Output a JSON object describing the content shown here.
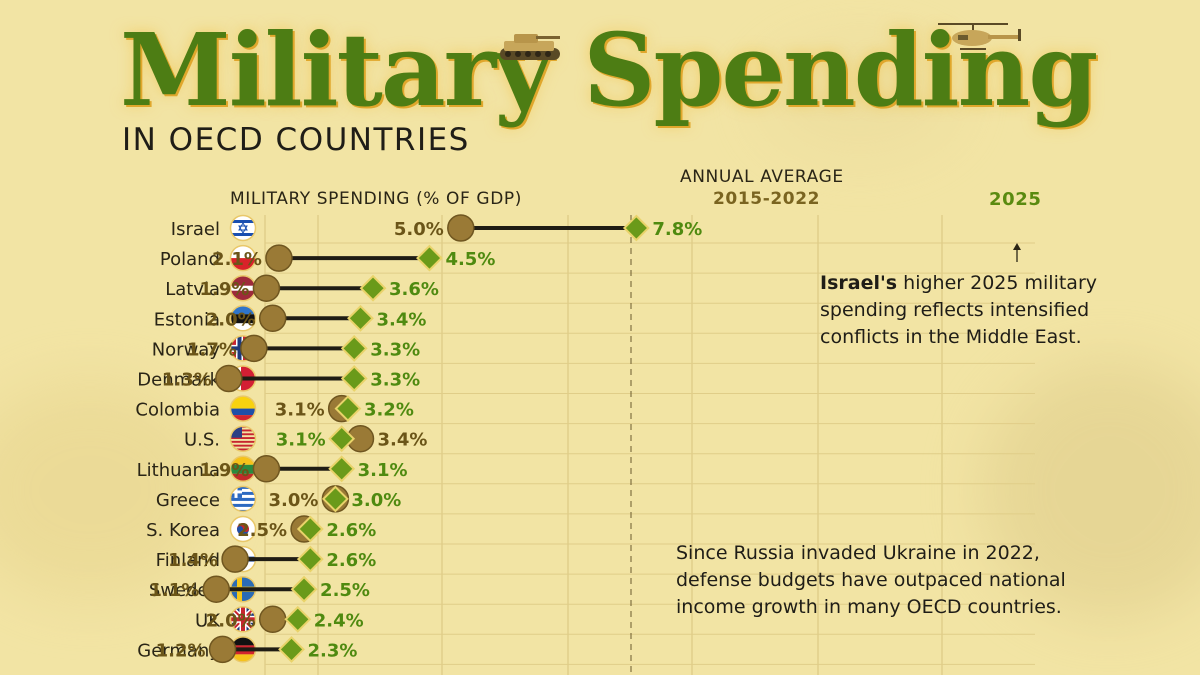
{
  "title": "Military Spending",
  "subtitle": "IN OECD COUNTRIES",
  "axis_label": "MILITARY SPENDING (% OF GDP)",
  "avg_label": "ANNUAL AVERAGE",
  "avg_years": "2015-2022",
  "year_label": "2025",
  "note_israel": {
    "bold": "Israel's",
    "line1_rest": " higher 2025 military",
    "line2": "spending reflects intensified",
    "line3": "conflicts in the Middle East."
  },
  "note_russia": {
    "line1": "Since Russia invaded Ukraine in 2022,",
    "line2": "defense budgets have outpaced national",
    "line3": "income growth in many OECD countries."
  },
  "colors": {
    "title_green": "#4d7d14",
    "avg_marker": "#9a7a36",
    "marker_2025": "#6a9a1a",
    "label_2025": "#4f8a10",
    "label_avg": "#6b5518"
  },
  "chart_data": {
    "type": "dumbbell",
    "x_unit": "% of GDP",
    "series": [
      {
        "name": "2015-2022",
        "marker": "circle"
      },
      {
        "name": "2025",
        "marker": "diamond"
      }
    ],
    "rows": [
      {
        "country": "Israel",
        "flag": "flag-israel",
        "avg": 5.0,
        "y2025": 7.8
      },
      {
        "country": "Poland",
        "flag": "flag-poland",
        "avg": 2.1,
        "y2025": 4.5
      },
      {
        "country": "Latvia",
        "flag": "flag-latvia",
        "avg": 1.9,
        "y2025": 3.6
      },
      {
        "country": "Estonia",
        "flag": "flag-estonia",
        "avg": 2.0,
        "y2025": 3.4
      },
      {
        "country": "Norway",
        "flag": "flag-norway",
        "avg": 1.7,
        "y2025": 3.3
      },
      {
        "country": "Denmark",
        "flag": "flag-denmark",
        "avg": 1.3,
        "y2025": 3.3
      },
      {
        "country": "Colombia",
        "flag": "flag-colombia",
        "avg": 3.1,
        "y2025": 3.2
      },
      {
        "country": "U.S.",
        "flag": "flag-us",
        "avg": 3.4,
        "y2025": 3.1
      },
      {
        "country": "Lithuania",
        "flag": "flag-lithuania",
        "avg": 1.9,
        "y2025": 3.1
      },
      {
        "country": "Greece",
        "flag": "flag-greece",
        "avg": 3.0,
        "y2025": 3.0
      },
      {
        "country": "S. Korea",
        "flag": "flag-south-korea",
        "avg": 2.5,
        "y2025": 2.6
      },
      {
        "country": "Finland",
        "flag": "flag-finland",
        "avg": 1.4,
        "y2025": 2.6
      },
      {
        "country": "Sweden",
        "flag": "flag-sweden",
        "avg": 1.1,
        "y2025": 2.5
      },
      {
        "country": "UK",
        "flag": "flag-uk",
        "avg": 2.0,
        "y2025": 2.4
      },
      {
        "country": "Germany",
        "flag": "flag-germany",
        "avg": 1.2,
        "y2025": 2.3
      }
    ]
  }
}
